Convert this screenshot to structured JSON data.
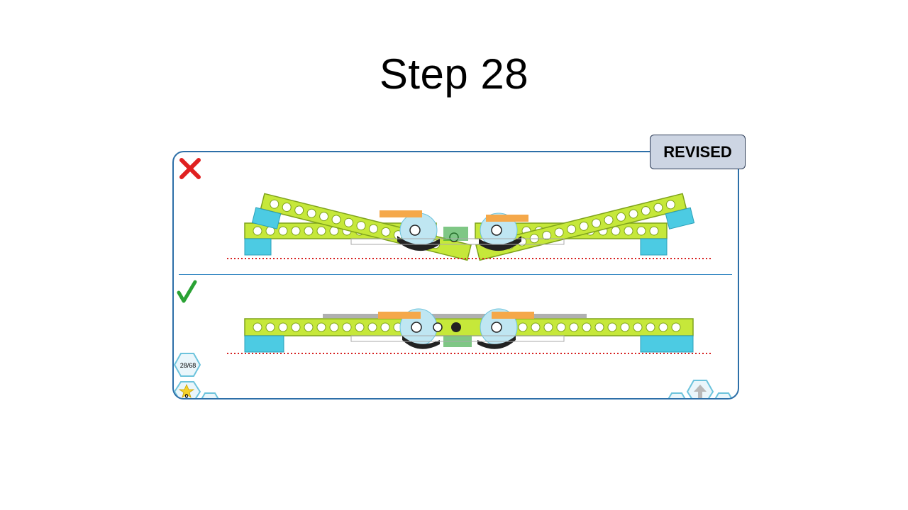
{
  "slide": {
    "title": "Step 28"
  },
  "badge": {
    "label": "REVISED"
  },
  "panel": {
    "incorrect_icon": "red-cross-icon",
    "correct_icon": "green-check-icon",
    "progress": {
      "text": "28/68",
      "current": 28,
      "total": 68
    },
    "stars": {
      "count": "0"
    }
  },
  "colors": {
    "beam": "#c6e83a",
    "beam_edge": "#7fa31c",
    "brick_blue": "#4ccbe3",
    "orange": "#f5a84a",
    "panel_border": "#2d6fa8",
    "badge_bg": "#cdd5e3",
    "wrong": "#e02020",
    "right": "#2aa234",
    "guide_line": "#d62020"
  }
}
